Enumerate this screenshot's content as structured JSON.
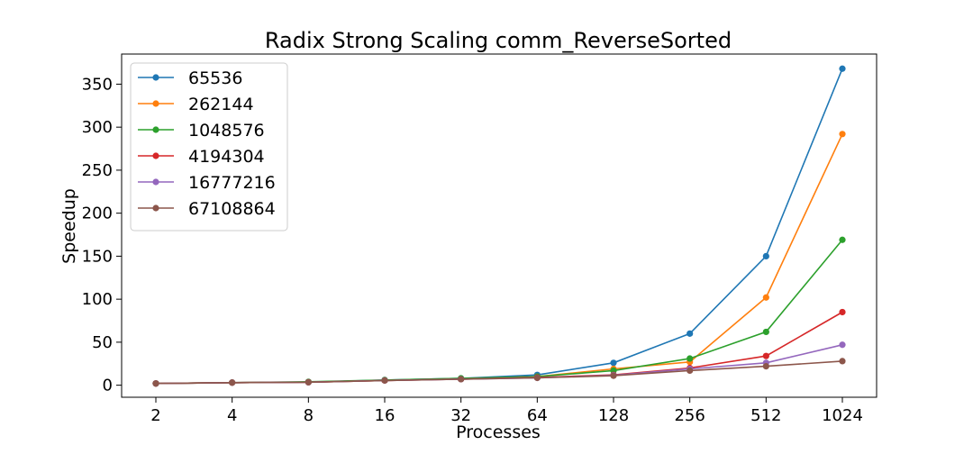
{
  "chart_data": {
    "type": "line",
    "title": "Radix Strong Scaling comm_ReverseSorted",
    "xlabel": "Processes",
    "ylabel": "Speedup",
    "x_scale": "log2",
    "categories": [
      "2",
      "4",
      "8",
      "16",
      "32",
      "64",
      "128",
      "256",
      "512",
      "1024"
    ],
    "x": [
      2,
      4,
      8,
      16,
      32,
      64,
      128,
      256,
      512,
      1024
    ],
    "ylim": [
      -14,
      385
    ],
    "yticks": [
      0,
      50,
      100,
      150,
      200,
      250,
      300,
      350
    ],
    "grid": false,
    "legend_position": "top-left",
    "series": [
      {
        "name": "65536",
        "color": "#1f77b4",
        "values": [
          2,
          3,
          3.5,
          6,
          8,
          12,
          26,
          60,
          150,
          368
        ]
      },
      {
        "name": "262144",
        "color": "#ff7f0e",
        "values": [
          2,
          3,
          3.5,
          5.5,
          7.5,
          10,
          19,
          27,
          102,
          292
        ]
      },
      {
        "name": "1048576",
        "color": "#2ca02c",
        "values": [
          2,
          3,
          4,
          6,
          8,
          10,
          17,
          31,
          62,
          169
        ]
      },
      {
        "name": "4194304",
        "color": "#d62728",
        "values": [
          2,
          3,
          3.5,
          5.5,
          7,
          9,
          12,
          20,
          34,
          85
        ]
      },
      {
        "name": "16777216",
        "color": "#9467bd",
        "values": [
          2,
          3,
          3.5,
          5.5,
          7,
          8.5,
          11.5,
          19,
          26,
          47
        ]
      },
      {
        "name": "67108864",
        "color": "#8c564b",
        "values": [
          2,
          3,
          3.5,
          5.5,
          7,
          8.5,
          11,
          17,
          22,
          28
        ]
      }
    ]
  }
}
